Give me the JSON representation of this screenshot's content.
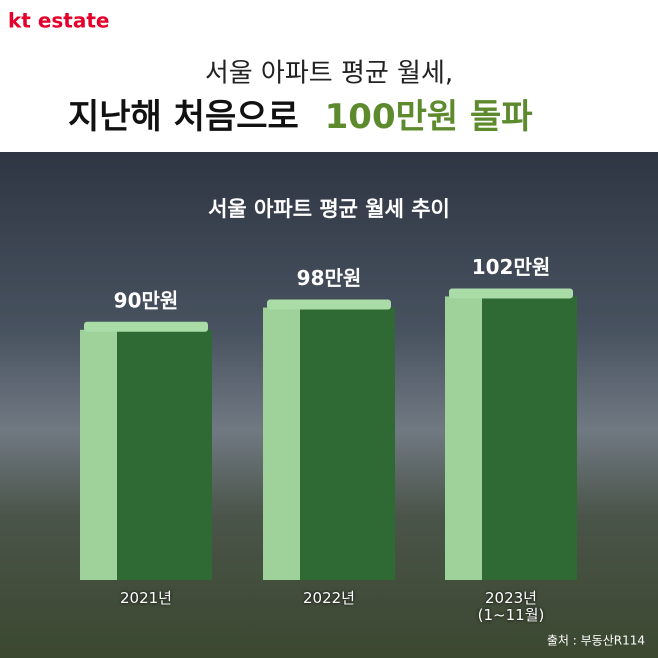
{
  "header": {
    "logo": "kt estate",
    "headline_line1": "서울 아파트 평균 월세,",
    "headline_line2": "지난해 처음으로",
    "headline_highlight": "100만원 돌파"
  },
  "chart_data": {
    "type": "bar",
    "title": "서울 아파트 평균 월세 추이",
    "categories": [
      "2021년",
      "2022년",
      "2023년\n(1~11월)"
    ],
    "values": [
      90,
      98,
      102
    ],
    "value_labels": [
      "90만원",
      "98만원",
      "102만원"
    ],
    "color": "#2f6a34",
    "source": "출처 : 부동산R114"
  }
}
